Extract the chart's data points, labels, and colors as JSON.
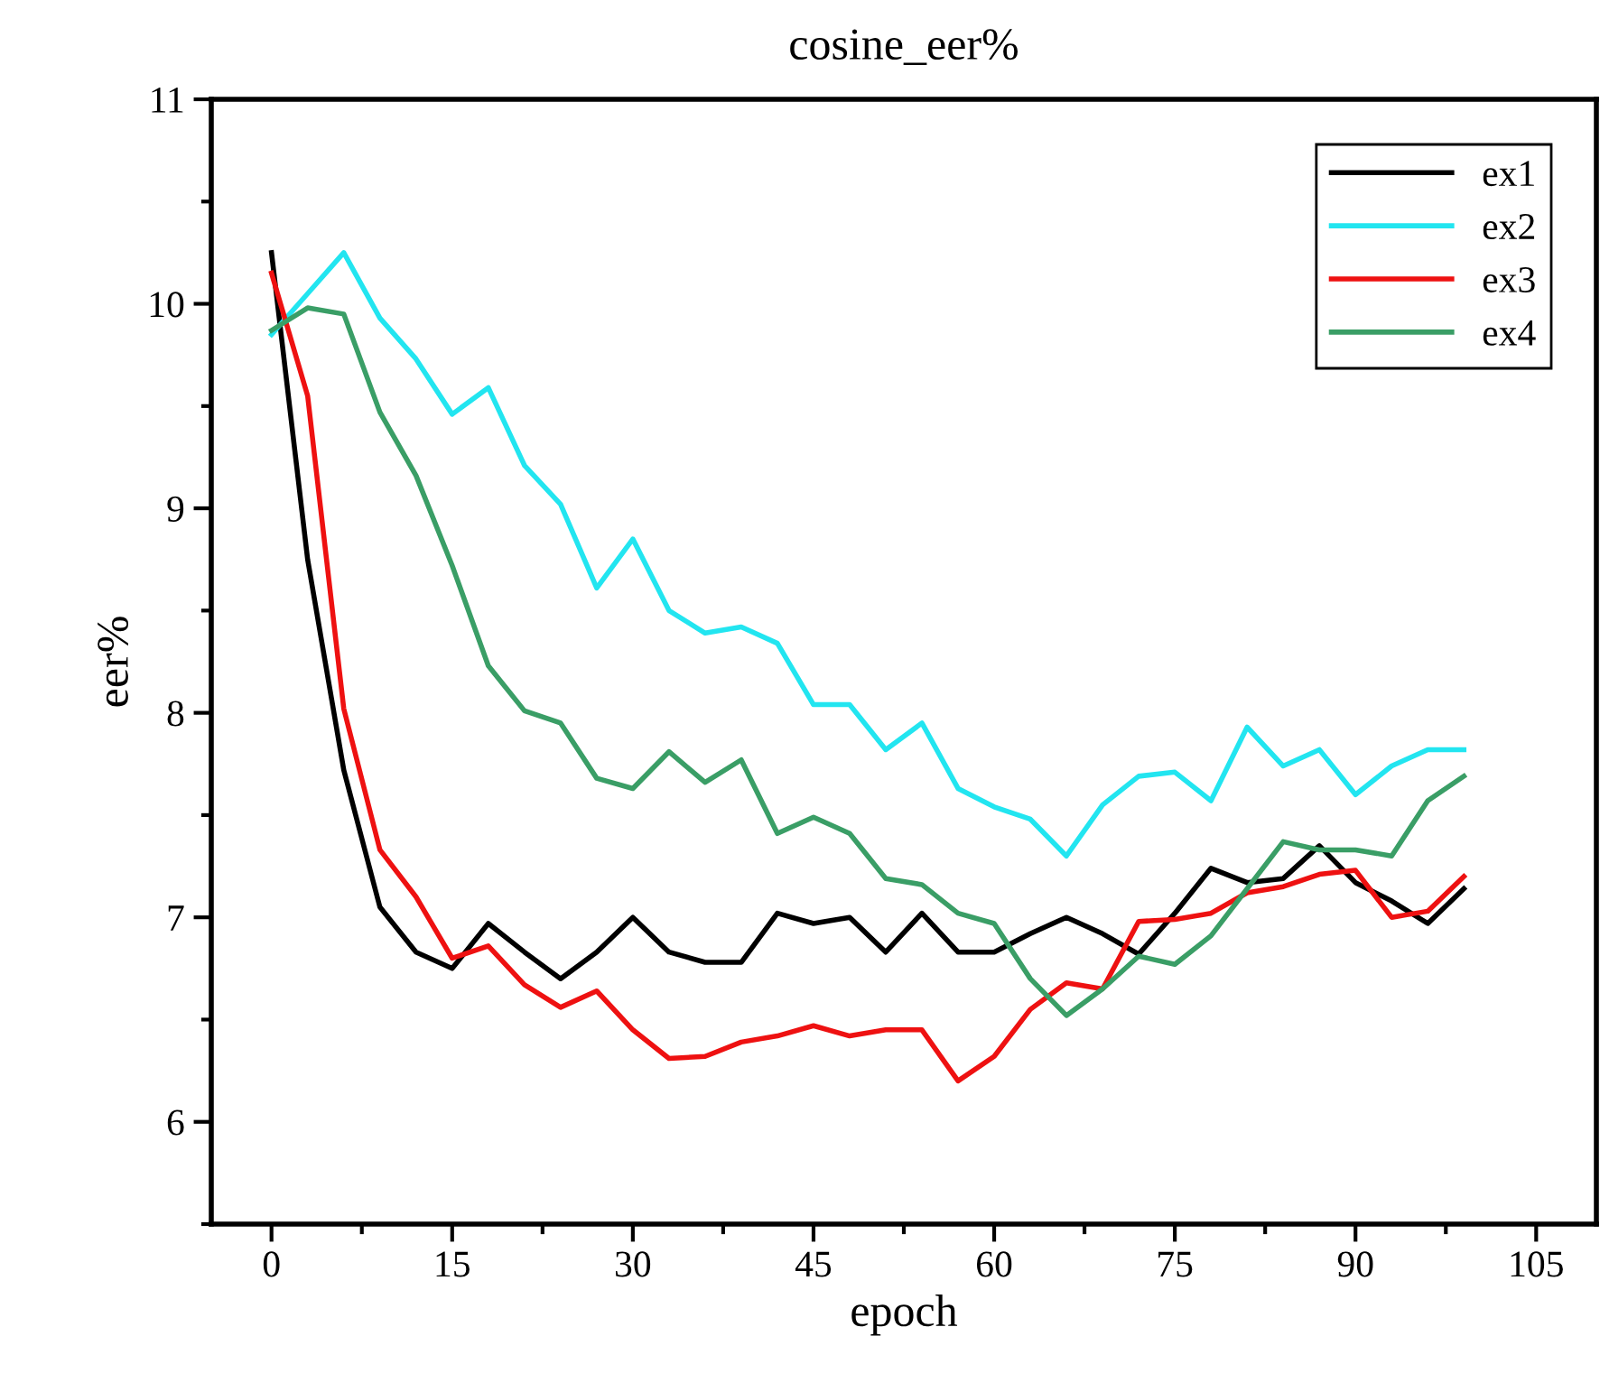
{
  "chart_data": {
    "type": "line",
    "title": "cosine_eer%",
    "xlabel": "epoch",
    "ylabel": "eer%",
    "x": [
      0,
      3,
      6,
      9,
      12,
      15,
      18,
      21,
      24,
      27,
      30,
      33,
      36,
      39,
      42,
      45,
      48,
      51,
      54,
      57,
      60,
      63,
      66,
      69,
      72,
      75,
      78,
      81,
      84,
      87,
      90,
      93,
      96,
      99
    ],
    "series": [
      {
        "name": "ex1",
        "color": "#000000",
        "values": [
          10.25,
          8.75,
          7.72,
          7.05,
          6.83,
          6.75,
          6.97,
          6.83,
          6.7,
          6.83,
          7.0,
          6.83,
          6.78,
          6.78,
          7.02,
          6.97,
          7.0,
          6.83,
          7.02,
          6.83,
          6.83,
          6.92,
          7.0,
          6.92,
          6.82,
          7.02,
          7.24,
          7.17,
          7.19,
          7.35,
          7.17,
          7.08,
          6.97,
          7.14
        ]
      },
      {
        "name": "ex2",
        "color": "#22e5f0",
        "values": [
          9.85,
          10.05,
          10.25,
          9.93,
          9.73,
          9.46,
          9.59,
          9.21,
          9.02,
          8.61,
          8.85,
          8.5,
          8.39,
          8.42,
          8.34,
          8.04,
          8.04,
          7.82,
          7.95,
          7.63,
          7.54,
          7.48,
          7.3,
          7.55,
          7.69,
          7.71,
          7.57,
          7.93,
          7.74,
          7.82,
          7.6,
          7.74,
          7.82,
          7.82
        ]
      },
      {
        "name": "ex3",
        "color": "#ee1111",
        "values": [
          10.15,
          9.55,
          8.02,
          7.33,
          7.1,
          6.8,
          6.86,
          6.67,
          6.56,
          6.64,
          6.45,
          6.31,
          6.32,
          6.39,
          6.42,
          6.47,
          6.42,
          6.45,
          6.45,
          6.2,
          6.32,
          6.55,
          6.68,
          6.65,
          6.98,
          6.99,
          7.02,
          7.12,
          7.15,
          7.21,
          7.23,
          7.0,
          7.03,
          7.2
        ]
      },
      {
        "name": "ex4",
        "color": "#3a9e66",
        "values": [
          9.87,
          9.98,
          9.95,
          9.47,
          9.16,
          8.72,
          8.23,
          8.01,
          7.95,
          7.68,
          7.63,
          7.81,
          7.66,
          7.77,
          7.41,
          7.49,
          7.41,
          7.19,
          7.16,
          7.02,
          6.97,
          6.7,
          6.52,
          6.65,
          6.81,
          6.77,
          6.91,
          7.14,
          7.37,
          7.33,
          7.33,
          7.3,
          7.57,
          7.69
        ]
      }
    ],
    "xlim": [
      -5,
      110
    ],
    "xticks": [
      0,
      15,
      30,
      45,
      60,
      75,
      90,
      105
    ],
    "ylim": [
      5.5,
      11
    ],
    "yticks": [
      6,
      7,
      8,
      9,
      10,
      11
    ],
    "grid": false,
    "legend": "top right",
    "marker": "none",
    "line_style": "solid"
  }
}
